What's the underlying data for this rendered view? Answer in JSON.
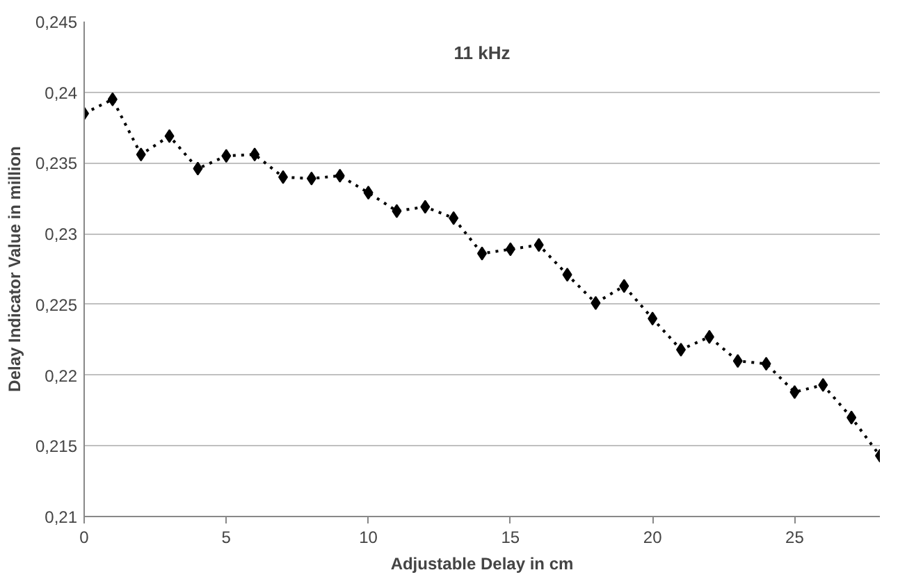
{
  "chart_data": {
    "type": "line",
    "title": "11 kHz",
    "xlabel": "Adjustable Delay in cm",
    "ylabel": "Delay Indicator Value in million",
    "x": [
      0,
      1,
      2,
      3,
      4,
      5,
      6,
      7,
      8,
      9,
      10,
      11,
      12,
      13,
      14,
      15,
      16,
      17,
      18,
      19,
      20,
      21,
      22,
      23,
      24,
      25,
      26,
      27,
      28
    ],
    "series": [
      {
        "color": "#000000",
        "values": [
          0.2385,
          0.2395,
          0.2356,
          0.2369,
          0.2346,
          0.2355,
          0.2356,
          0.234,
          0.2339,
          0.2341,
          0.2329,
          0.2316,
          0.2319,
          0.2311,
          0.2286,
          0.2289,
          0.2292,
          0.2271,
          0.2251,
          0.2263,
          0.224,
          0.2218,
          0.2227,
          0.221,
          0.2208,
          0.2188,
          0.2193,
          0.217,
          0.2143
        ]
      }
    ],
    "xlim": [
      0,
      28
    ],
    "xticks": [
      0,
      5,
      10,
      15,
      20,
      25
    ],
    "ylim": [
      0.21,
      0.245
    ],
    "yticks": [
      {
        "value": 0.21,
        "label": "0,21"
      },
      {
        "value": 0.215,
        "label": "0,215"
      },
      {
        "value": 0.22,
        "label": "0,22"
      },
      {
        "value": 0.225,
        "label": "0,225"
      },
      {
        "value": 0.23,
        "label": "0,23"
      },
      {
        "value": 0.235,
        "label": "0,235"
      },
      {
        "value": 0.24,
        "label": "0,24"
      },
      {
        "value": 0.245,
        "label": "0,245"
      }
    ],
    "grid": "y",
    "marker": "diamond",
    "line_style": "dotted"
  }
}
